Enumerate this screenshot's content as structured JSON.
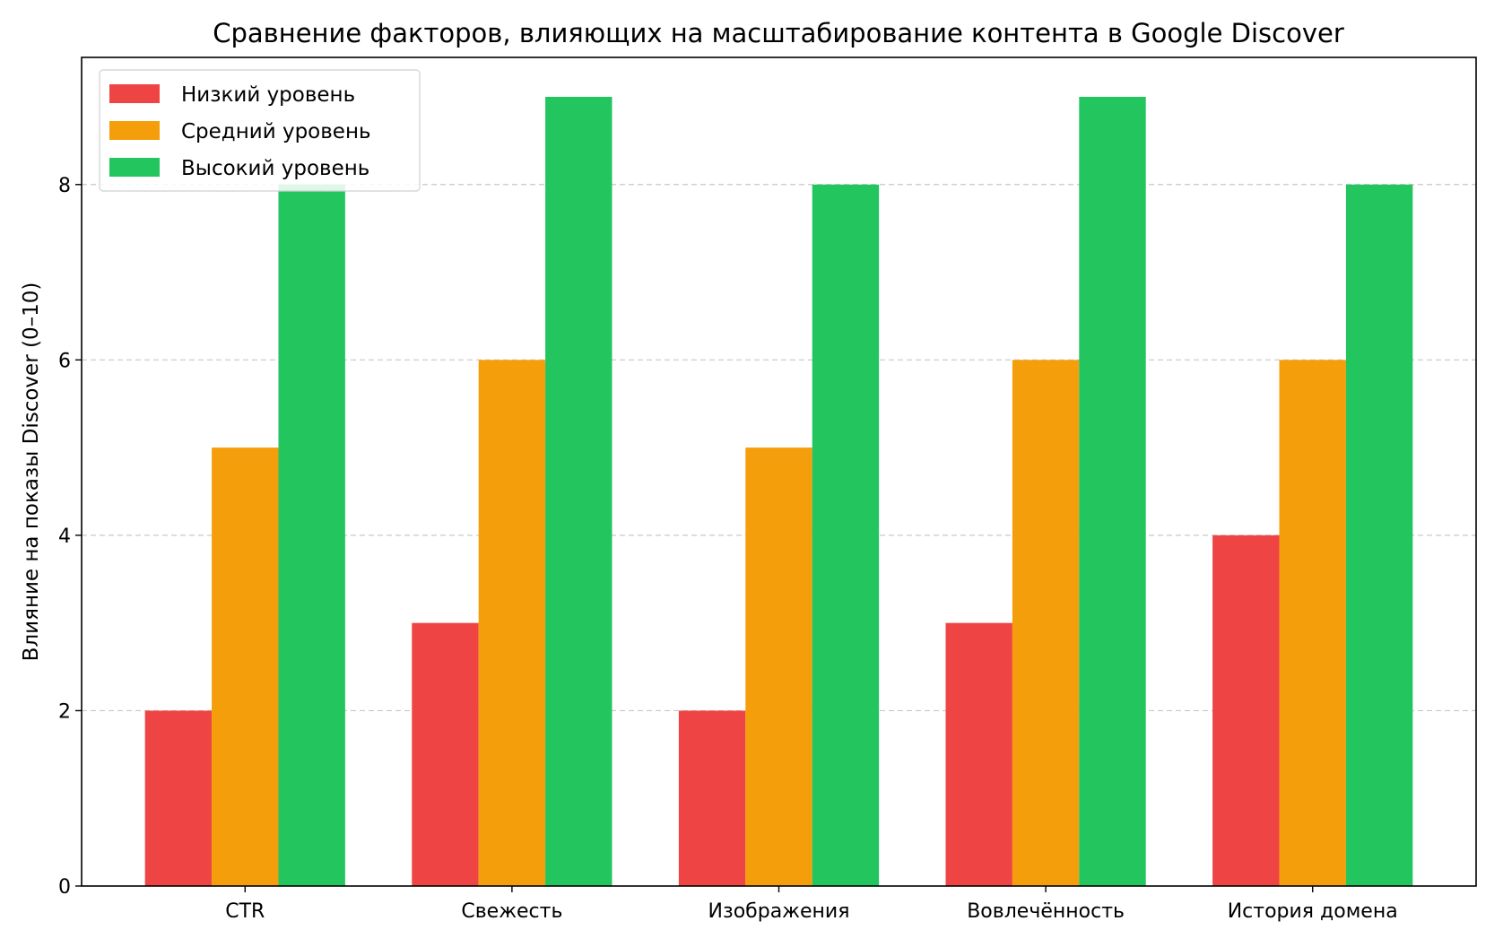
{
  "chart_data": {
    "type": "bar",
    "title": "Сравнение факторов, влияющих на масштабирование контента в Google Discover",
    "xlabel": "",
    "ylabel": "Влияние на показы Discover (0–10)",
    "categories": [
      "CTR",
      "Свежесть",
      "Изображения",
      "Вовлечённость",
      "История домена"
    ],
    "series": [
      {
        "name": "Низкий уровень",
        "color": "#ef4444",
        "values": [
          2,
          3,
          2,
          3,
          4
        ]
      },
      {
        "name": "Средний уровень",
        "color": "#f59e0b",
        "values": [
          5,
          6,
          5,
          6,
          6
        ]
      },
      {
        "name": "Высокий уровень",
        "color": "#22c55e",
        "values": [
          8,
          9,
          8,
          9,
          8
        ]
      }
    ],
    "ylim": [
      0,
      9.45
    ],
    "yticks": [
      0,
      2,
      4,
      6,
      8
    ],
    "grid": "y dashed",
    "legend": "top-left"
  }
}
